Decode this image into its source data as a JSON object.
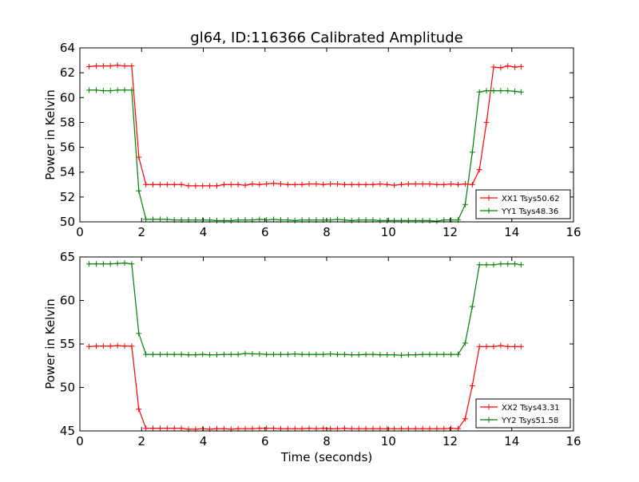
{
  "chart_data": [
    {
      "type": "line",
      "title": "gl64, ID:116366 Calibrated Amplitude",
      "xlabel": "",
      "ylabel": "Power in Kelvin",
      "xlim": [
        0,
        16
      ],
      "ylim": [
        50,
        64
      ],
      "xticks": [
        0,
        2,
        4,
        6,
        8,
        10,
        12,
        14,
        16
      ],
      "yticks": [
        50,
        52,
        54,
        56,
        58,
        60,
        62,
        64
      ],
      "legend_position": "lower-right",
      "grid": false,
      "x": [
        0.3,
        0.53,
        0.76,
        0.99,
        1.22,
        1.45,
        1.68,
        1.91,
        2.14,
        2.37,
        2.6,
        2.83,
        3.06,
        3.29,
        3.52,
        3.75,
        3.98,
        4.21,
        4.44,
        4.67,
        4.9,
        5.13,
        5.36,
        5.59,
        5.82,
        6.05,
        6.28,
        6.51,
        6.74,
        6.97,
        7.2,
        7.43,
        7.66,
        7.89,
        8.12,
        8.35,
        8.58,
        8.81,
        9.04,
        9.27,
        9.5,
        9.73,
        9.96,
        10.19,
        10.42,
        10.65,
        10.88,
        11.11,
        11.34,
        11.57,
        11.8,
        12.03,
        12.26,
        12.49,
        12.72,
        12.95,
        13.18,
        13.41,
        13.64,
        13.87,
        14.1,
        14.3
      ],
      "series": [
        {
          "name": "XX1 Tsys50.62",
          "color": "#ff0000",
          "values": [
            62.5,
            62.55,
            62.55,
            62.55,
            62.6,
            62.55,
            62.55,
            55.2,
            53.0,
            53.0,
            53.0,
            53.0,
            53.0,
            53.0,
            52.9,
            52.9,
            52.9,
            52.9,
            52.9,
            53.0,
            53.0,
            53.0,
            52.95,
            53.05,
            53.0,
            53.05,
            53.1,
            53.05,
            53.0,
            53.0,
            53.0,
            53.05,
            53.05,
            53.0,
            53.05,
            53.05,
            53.0,
            53.0,
            53.0,
            53.0,
            53.0,
            53.05,
            53.0,
            52.95,
            53.0,
            53.05,
            53.05,
            53.05,
            53.05,
            53.0,
            53.0,
            53.05,
            53.0,
            53.05,
            53.0,
            54.2,
            58.0,
            62.45,
            62.4,
            62.55,
            62.45,
            62.5
          ]
        },
        {
          "name": "YY1 Tsys48.36",
          "color": "#008000",
          "values": [
            60.6,
            60.6,
            60.55,
            60.55,
            60.6,
            60.6,
            60.6,
            52.5,
            50.2,
            50.2,
            50.2,
            50.2,
            50.15,
            50.15,
            50.15,
            50.15,
            50.15,
            50.15,
            50.1,
            50.1,
            50.1,
            50.15,
            50.15,
            50.15,
            50.2,
            50.15,
            50.2,
            50.15,
            50.15,
            50.1,
            50.15,
            50.15,
            50.15,
            50.15,
            50.15,
            50.2,
            50.15,
            50.1,
            50.15,
            50.15,
            50.15,
            50.1,
            50.1,
            50.1,
            50.1,
            50.1,
            50.1,
            50.1,
            50.1,
            50.05,
            50.15,
            50.15,
            50.15,
            51.4,
            55.6,
            60.45,
            60.55,
            60.55,
            60.55,
            60.55,
            60.5,
            60.45
          ]
        }
      ]
    },
    {
      "type": "line",
      "title": "",
      "xlabel": "Time (seconds)",
      "ylabel": "Power in Kelvin",
      "xlim": [
        0,
        16
      ],
      "ylim": [
        45,
        65
      ],
      "xticks": [
        0,
        2,
        4,
        6,
        8,
        10,
        12,
        14,
        16
      ],
      "yticks": [
        45,
        50,
        55,
        60,
        65
      ],
      "legend_position": "lower-right",
      "grid": false,
      "x": [
        0.3,
        0.53,
        0.76,
        0.99,
        1.22,
        1.45,
        1.68,
        1.91,
        2.14,
        2.37,
        2.6,
        2.83,
        3.06,
        3.29,
        3.52,
        3.75,
        3.98,
        4.21,
        4.44,
        4.67,
        4.9,
        5.13,
        5.36,
        5.59,
        5.82,
        6.05,
        6.28,
        6.51,
        6.74,
        6.97,
        7.2,
        7.43,
        7.66,
        7.89,
        8.12,
        8.35,
        8.58,
        8.81,
        9.04,
        9.27,
        9.5,
        9.73,
        9.96,
        10.19,
        10.42,
        10.65,
        10.88,
        11.11,
        11.34,
        11.57,
        11.8,
        12.03,
        12.26,
        12.49,
        12.72,
        12.95,
        13.18,
        13.41,
        13.64,
        13.87,
        14.1,
        14.3
      ],
      "series": [
        {
          "name": "XX2 Tsys43.31",
          "color": "#ff0000",
          "values": [
            54.7,
            54.75,
            54.75,
            54.75,
            54.8,
            54.75,
            54.75,
            47.5,
            45.3,
            45.3,
            45.3,
            45.3,
            45.3,
            45.3,
            45.2,
            45.2,
            45.25,
            45.2,
            45.25,
            45.25,
            45.2,
            45.25,
            45.25,
            45.25,
            45.3,
            45.3,
            45.3,
            45.25,
            45.25,
            45.25,
            45.25,
            45.3,
            45.25,
            45.3,
            45.25,
            45.25,
            45.3,
            45.25,
            45.25,
            45.25,
            45.25,
            45.25,
            45.25,
            45.25,
            45.25,
            45.25,
            45.25,
            45.25,
            45.25,
            45.25,
            45.25,
            45.3,
            45.25,
            46.4,
            50.2,
            54.7,
            54.7,
            54.7,
            54.8,
            54.7,
            54.7,
            54.7
          ]
        },
        {
          "name": "YY2 Tsys51.58",
          "color": "#008000",
          "values": [
            64.2,
            64.2,
            64.2,
            64.2,
            64.25,
            64.3,
            64.2,
            56.2,
            53.8,
            53.8,
            53.8,
            53.8,
            53.8,
            53.8,
            53.75,
            53.75,
            53.8,
            53.75,
            53.75,
            53.8,
            53.8,
            53.8,
            53.9,
            53.85,
            53.85,
            53.8,
            53.8,
            53.8,
            53.8,
            53.85,
            53.8,
            53.8,
            53.8,
            53.8,
            53.85,
            53.8,
            53.8,
            53.75,
            53.75,
            53.8,
            53.8,
            53.75,
            53.75,
            53.75,
            53.7,
            53.75,
            53.75,
            53.8,
            53.8,
            53.8,
            53.8,
            53.8,
            53.8,
            55.1,
            59.3,
            64.1,
            64.1,
            64.1,
            64.2,
            64.2,
            64.2,
            64.1
          ]
        }
      ]
    }
  ]
}
